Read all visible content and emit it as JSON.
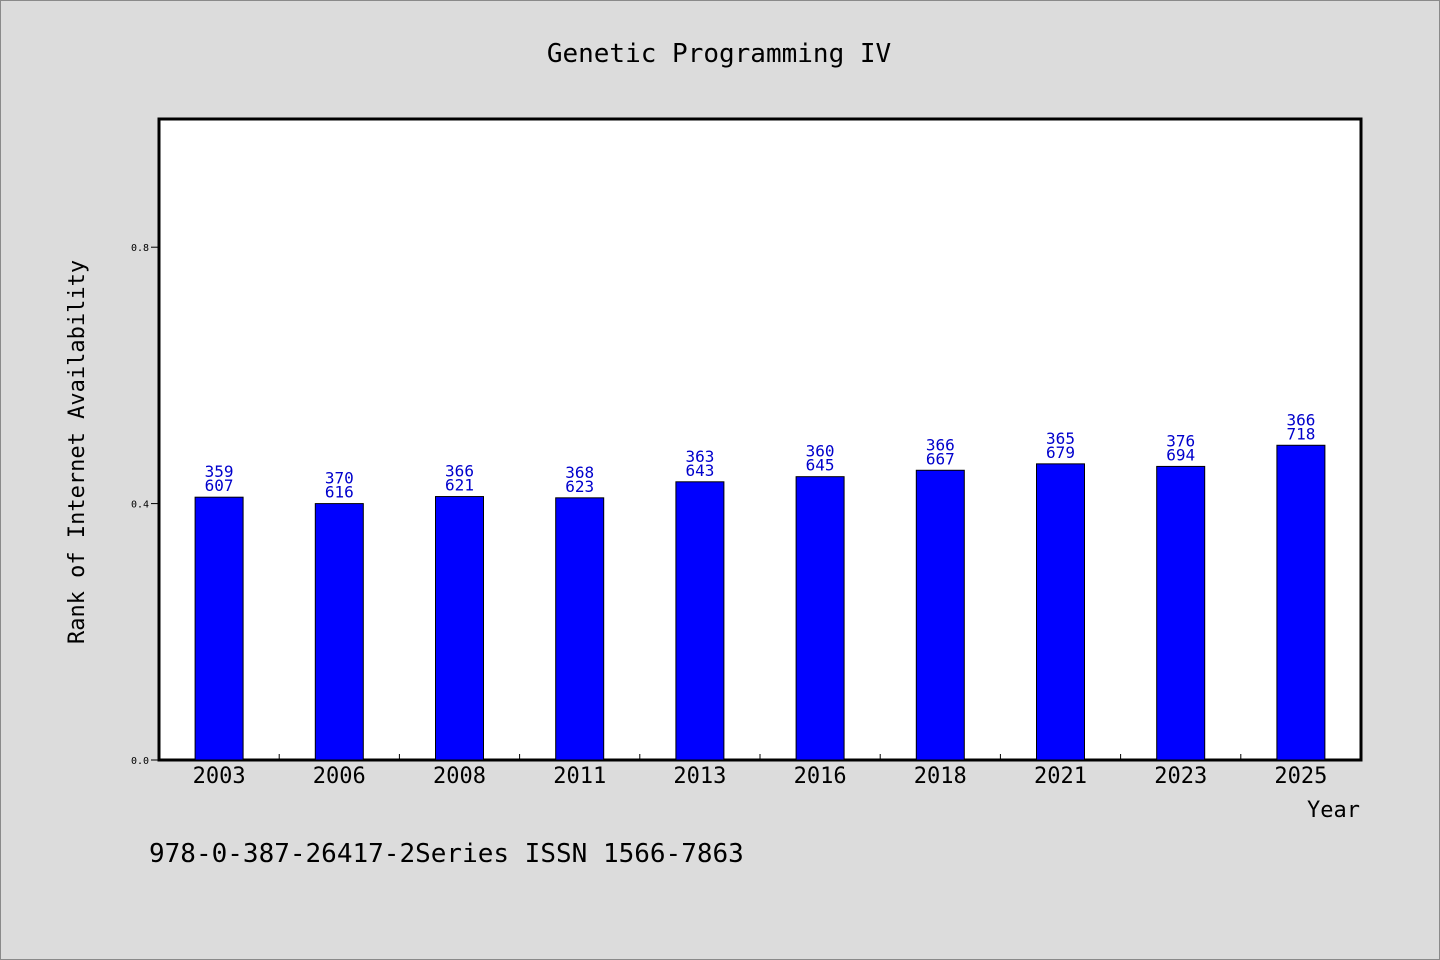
{
  "chart_data": {
    "type": "bar",
    "title": "Genetic Programming IV",
    "xlabel": "Year",
    "ylabel": "Rank of Internet Availability",
    "categories": [
      "2003",
      "2006",
      "2008",
      "2011",
      "2013",
      "2016",
      "2018",
      "2021",
      "2023",
      "2025"
    ],
    "values": [
      0.41,
      0.4,
      0.411,
      0.409,
      0.434,
      0.442,
      0.452,
      0.462,
      0.458,
      0.491
    ],
    "label_top": [
      "359",
      "370",
      "366",
      "368",
      "363",
      "360",
      "366",
      "365",
      "376",
      "366"
    ],
    "label_bottom": [
      "607",
      "616",
      "621",
      "623",
      "643",
      "645",
      "667",
      "679",
      "694",
      "718"
    ],
    "ylim": [
      0,
      1.0
    ],
    "yticks": [
      0.0,
      0.4,
      0.8
    ],
    "ytick_labels": [
      "0.0",
      "0.4",
      "0.8"
    ],
    "bar_color": "#0000ff",
    "label_color": "#0000cc",
    "grid": false,
    "legend": "none"
  },
  "footer": {
    "text": "978-0-387-26417-2Series ISSN 1566-7863"
  }
}
